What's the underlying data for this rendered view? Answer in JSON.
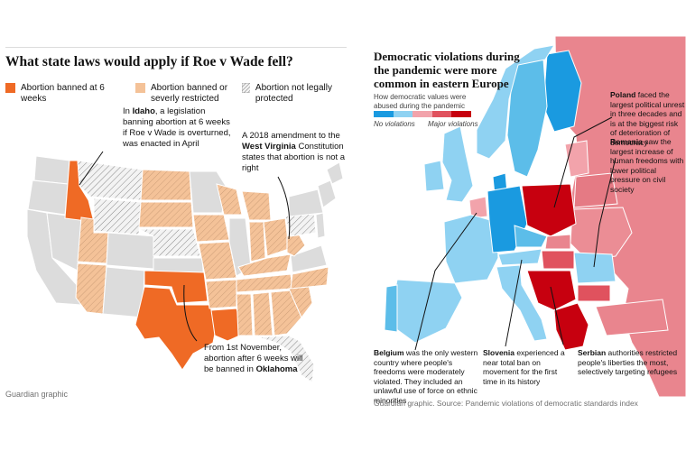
{
  "left": {
    "title": "What state laws would apply if Roe v Wade fell?",
    "legend": [
      {
        "label": "Abortion banned at 6 weeks",
        "color": "#ef6a25"
      },
      {
        "label": "Abortion banned or severly restricted",
        "color": "#f4c298"
      },
      {
        "label": "Abortion not legally protected",
        "color": "hatched"
      }
    ],
    "annotations": {
      "idaho": {
        "pre": "In ",
        "bold": "Idaho",
        "post": ", a legislation banning abortion at 6 weeks if Roe v Wade is overturned, was enacted in April"
      },
      "wv": {
        "pre": "A 2018 amendment to the ",
        "bold": "West Virginia",
        "post": " Constitution states that abortion is not a right"
      },
      "ok": {
        "pre": "From 1st November, abortion after 6 weeks will be banned in ",
        "bold": "Oklahoma",
        "post": ""
      }
    },
    "credit": "Guardian graphic"
  },
  "right": {
    "title": "Democratic violations during the pandemic were more common in eastern Europe",
    "scale": {
      "caption": "How democratic values were abused during the pandemic",
      "min_label": "No violations",
      "max_label": "Major violations",
      "colors": [
        "#1a9ae0",
        "#8fd2f2",
        "#f2a3ab",
        "#e0525e",
        "#c7000f"
      ]
    },
    "annotations": {
      "poland": {
        "bold": "Poland",
        "post": " faced the largest political unrest in three decades and is at the biggest risk of deterioration of democracy"
      },
      "romania": {
        "bold": "Romania",
        "post": " saw the largest increase of human freedoms with lower political pressure on civil society"
      },
      "belgium": {
        "bold": "Belgium",
        "post": " was the only western country where people's freedoms were moderately violated. They included an unlawful use of force on ethnic minorities"
      },
      "slovenia": {
        "bold": "Slovenia",
        "post": " experienced a near total ban on movement for the first time in its history"
      },
      "serbia": {
        "bold": "Serbian",
        "post": " authorities restricted people's liberties the most, selectively targeting refugees"
      }
    },
    "credit": "Guardian graphic. Source: Pandemic violations of democratic standards index"
  }
}
